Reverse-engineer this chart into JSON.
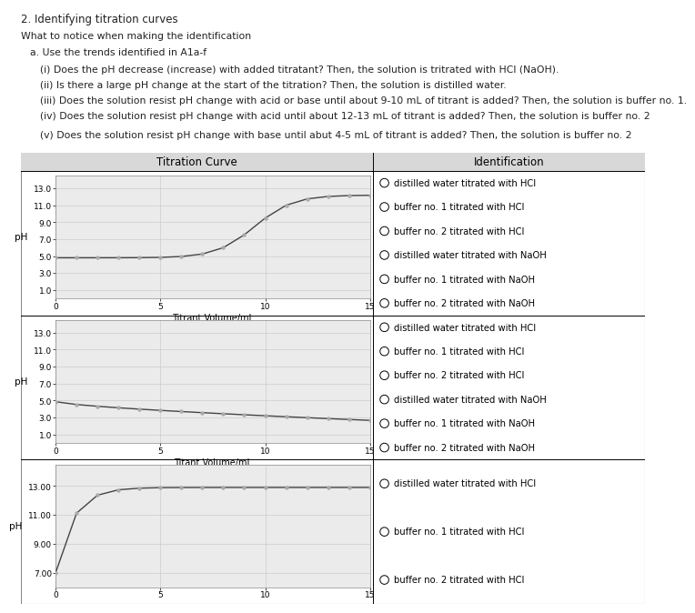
{
  "title_line1": "2. Identifying titration curves",
  "title_line2": "What to notice when making the identification",
  "subtitle_a": "a. Use the trends identified in A1a-f",
  "bullets": [
    "(i) Does the pH decrease (increase) with added titratant? Then, the solution is tritrated with HCl (NaOH).",
    "(ii) Is there a large pH change at the start of the titration? Then, the solution is distilled water.",
    "(iii) Does the solution resist pH change with acid or base until about 9-10 mL of titrant is added? Then, the solution is buffer no. 1.",
    "(iv) Does the solution resist pH change with acid until about 12-13 mL of titrant is added? Then, the solution is buffer no. 2",
    "(v) Does the solution resist pH change with base until abut 4-5 mL of titrant is added? Then, the solution is buffer no. 2"
  ],
  "table_header_left": "Titration Curve",
  "table_header_right": "Identification",
  "id_options_row1": [
    "distilled water titrated with HCl",
    "buffer no. 1 titrated with HCl",
    "buffer no. 2 titrated with HCl",
    "distilled water titrated with NaOH",
    "buffer no. 1 titrated with NaOH",
    "buffer no. 2 titrated with NaOH"
  ],
  "id_options_row2": [
    "distilled water titrated with HCl",
    "buffer no. 1 titrated with HCl",
    "buffer no. 2 titrated with HCl",
    "distilled water titrated with NaOH",
    "buffer no. 1 titrated with NaOH",
    "buffer no. 2 titrated with NaOH"
  ],
  "id_options_row3": [
    "distilled water titrated with HCl",
    "buffer no. 1 titrated with HCl",
    "buffer no. 2 titrated with HCl"
  ],
  "plot1_xlabel": "Titrant Volume/mL",
  "plot1_ylabel": "pH",
  "plot1_ytick_labels": [
    "1.0",
    "3.0",
    "5.0",
    "7.0",
    "9.0",
    "11.0",
    "13.0"
  ],
  "plot1_ytick_vals": [
    1.0,
    3.0,
    5.0,
    7.0,
    9.0,
    11.0,
    13.0
  ],
  "plot1_xticks": [
    0,
    5,
    10,
    15
  ],
  "plot1_ylim": [
    0.0,
    14.5
  ],
  "plot1_xlim": [
    0,
    15
  ],
  "plot2_xlabel": "Titant Volume/mL",
  "plot2_ylabel": "pH",
  "plot2_ytick_labels": [
    "1.0",
    "3.0",
    "5.0",
    "7.0",
    "9.0",
    "11.0",
    "13.0"
  ],
  "plot2_ytick_vals": [
    1.0,
    3.0,
    5.0,
    7.0,
    9.0,
    11.0,
    13.0
  ],
  "plot2_xticks": [
    0,
    5,
    10,
    15
  ],
  "plot2_ylim": [
    0.0,
    14.5
  ],
  "plot2_xlim": [
    0,
    15
  ],
  "plot3_xlabel": "",
  "plot3_ylabel": "pH",
  "plot3_ytick_labels": [
    "7.00",
    "9.00",
    "11.00",
    "13.00"
  ],
  "plot3_ytick_vals": [
    7.0,
    9.0,
    11.0,
    13.0
  ],
  "plot3_xticks": [
    0,
    5,
    10,
    15
  ],
  "plot3_ylim": [
    6.0,
    14.5
  ],
  "plot3_xlim": [
    0,
    15
  ],
  "line_color": "#444444",
  "dot_color": "#aaaaaa",
  "grid_color": "#cccccc",
  "plot_bg_color": "#ebebeb",
  "table_border_color": "#888888",
  "header_bg": "#d8d8d8",
  "white": "#ffffff",
  "text_color": "#222222"
}
